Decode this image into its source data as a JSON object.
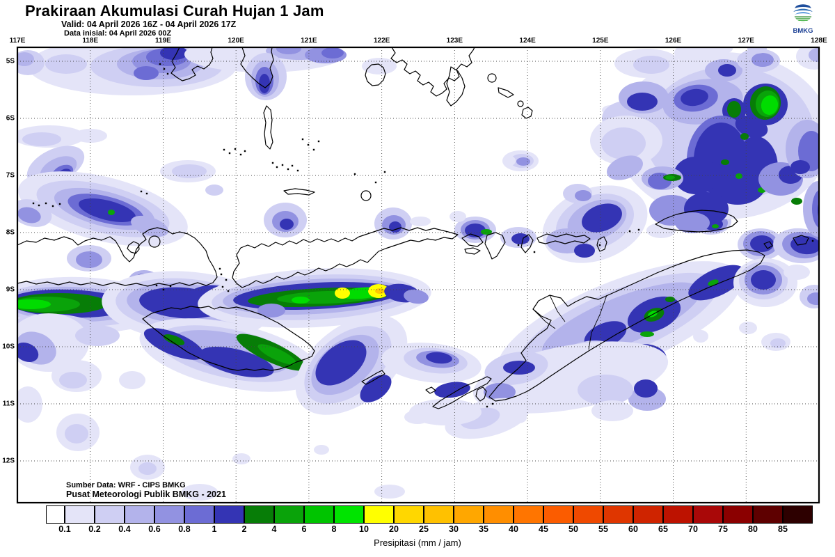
{
  "header": {
    "title": "Prakiraan Akumulasi Curah Hujan 1 Jam",
    "valid_line": "Valid: 04 April 2026 16Z - 04 April 2026 17Z",
    "init_line": "Data inisial: 04 April 2026 00Z",
    "logo_text": "BMKG"
  },
  "map": {
    "lon_labels": [
      "117E",
      "118E",
      "119E",
      "120E",
      "121E",
      "122E",
      "123E",
      "124E",
      "125E",
      "126E",
      "127E",
      "128E"
    ],
    "lat_labels": [
      "5S",
      "6S",
      "7S",
      "8S",
      "9S",
      "10S",
      "11S",
      "12S"
    ],
    "source_line1": "Sumber Data: WRF - CIPS BMKG",
    "source_line2": "Pusat Meteorologi Publik BMKG - 2021"
  },
  "colorbar": {
    "unit_label": "Presipitasi (mm / jam)",
    "tick_labels": [
      "0.1",
      "0.2",
      "0.4",
      "0.6",
      "0.8",
      "1",
      "2",
      "4",
      "6",
      "8",
      "10",
      "20",
      "25",
      "30",
      "35",
      "40",
      "45",
      "50",
      "55",
      "60",
      "65",
      "70",
      "75",
      "80",
      "85"
    ],
    "cell_colors": [
      "#ffffff",
      "#e4e4f8",
      "#cfcff3",
      "#b3b3eb",
      "#9292e1",
      "#6c6cd4",
      "#3434b4",
      "#077d07",
      "#0aa30a",
      "#00c400",
      "#00e400",
      "#ffff00",
      "#ffd700",
      "#ffc100",
      "#ffa700",
      "#ff8e00",
      "#ff7500",
      "#fb5c00",
      "#ef4900",
      "#df3600",
      "#cf2400",
      "#bd1200",
      "#a90808",
      "#8b0000",
      "#5e0000",
      "#2d0000"
    ],
    "status_colors": {
      "light_rain": "#cfcff3",
      "heavy_rain": "#3434b4",
      "very_heavy": "#077d07",
      "extreme": "#ffff00"
    }
  }
}
